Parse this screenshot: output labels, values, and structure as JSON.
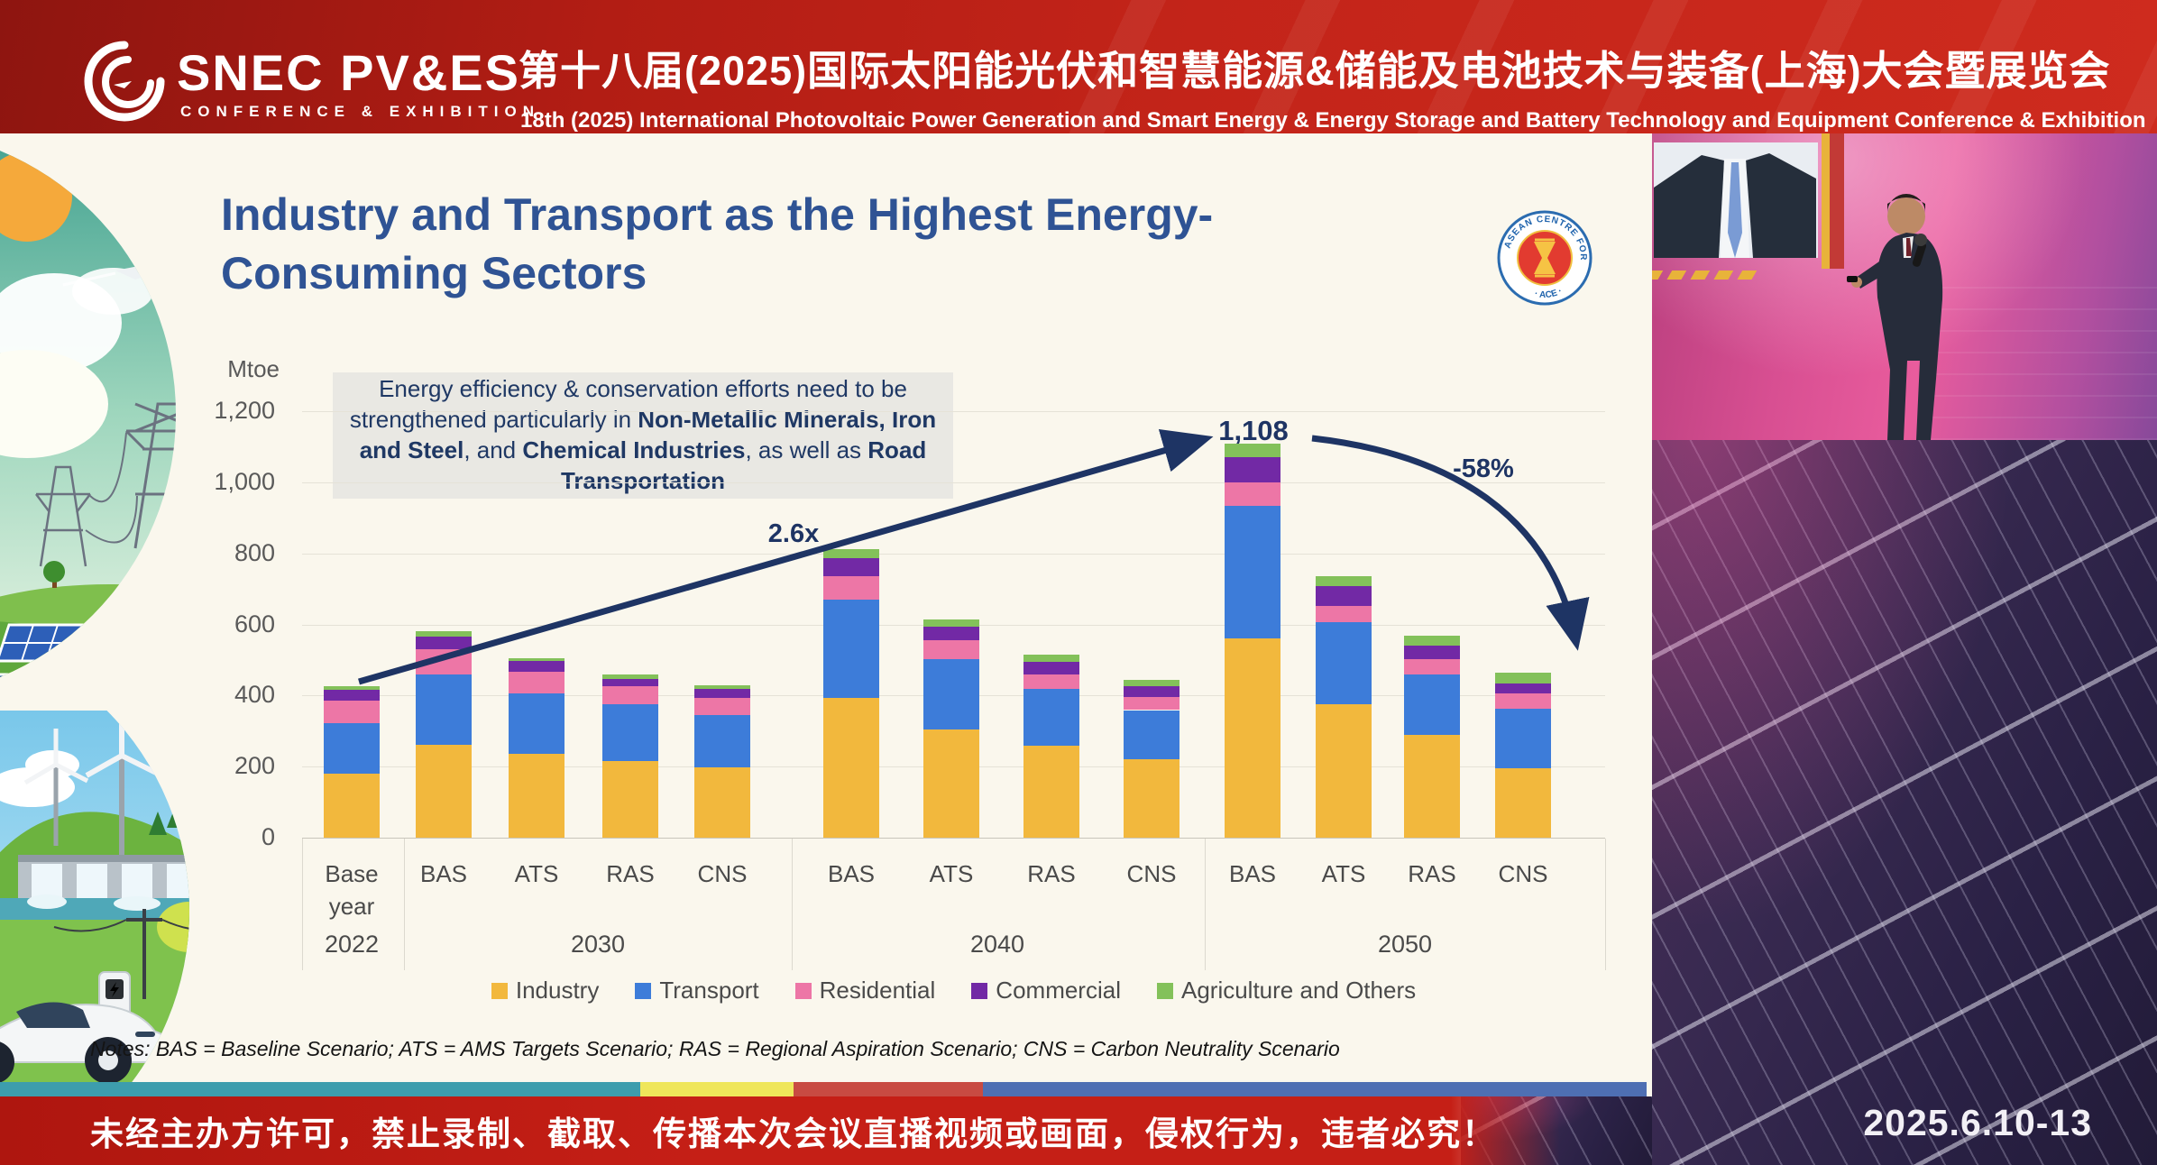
{
  "header": {
    "logo_text": "SNEC PV&ES",
    "logo_sub": "CONFERENCE & EXHIBITION",
    "title_cn": "第十八届(2025)国际太阳能光伏和智慧能源&储能及电池技术与装备(上海)大会暨展览会",
    "title_en": "18th (2025) International Photovoltaic Power Generation and Smart Energy & Energy Storage and Battery Technology and Equipment Conference & Exhibition"
  },
  "slide": {
    "title": "Industry and Transport as the Highest Energy-\nConsuming Sectors",
    "ace_ring_text": "ASEAN CENTRE FOR ENERGY",
    "ace_bottom_text": "· ACE ·",
    "annotation_runs": [
      {
        "t": "Energy efficiency & conservation efforts need to be strengthened particularly in ",
        "b": false
      },
      {
        "t": "Non-Metallic Minerals, Iron and Steel",
        "b": true
      },
      {
        "t": ", and ",
        "b": false
      },
      {
        "t": "Chemical Industries",
        "b": true
      },
      {
        "t": ", as well as ",
        "b": false
      },
      {
        "t": "Road Transportation",
        "b": true
      }
    ],
    "notes": "Notes: BAS = Baseline Scenario; ATS = AMS Targets Scenario; RAS = Regional Aspiration Scenario; CNS = Carbon Neutrality Scenario"
  },
  "chart_data": {
    "type": "bar",
    "stacked": true,
    "ylabel": "Mtoe",
    "ylim": [
      0,
      1200
    ],
    "grid": true,
    "legend_position": "bottom",
    "y_ticks": [
      "1,200",
      "1,000",
      "800",
      "600",
      "400",
      "200",
      "0"
    ],
    "y_tick_values": [
      1200,
      1000,
      800,
      600,
      400,
      200,
      0
    ],
    "categories": [
      "Base\nyear",
      "BAS",
      "ATS",
      "RAS",
      "CNS",
      "BAS",
      "ATS",
      "RAS",
      "CNS",
      "BAS",
      "ATS",
      "RAS",
      "CNS"
    ],
    "group_labels": [
      "2022",
      "2030",
      "2040",
      "2050"
    ],
    "series": [
      {
        "name": "Industry",
        "color": "#F2B83D",
        "values": [
          180,
          262,
          237,
          216,
          197,
          393,
          304,
          258,
          220,
          560,
          376,
          288,
          195
        ]
      },
      {
        "name": "Transport",
        "color": "#3D7CD9",
        "values": [
          143,
          198,
          168,
          160,
          147,
          277,
          198,
          160,
          139,
          374,
          231,
          172,
          168
        ]
      },
      {
        "name": "Residential",
        "color": "#ED76A6",
        "values": [
          62,
          71,
          63,
          50,
          49,
          66,
          53,
          42,
          38,
          65,
          46,
          42,
          42
        ]
      },
      {
        "name": "Commercial",
        "color": "#7229A5",
        "values": [
          31,
          34,
          30,
          21,
          26,
          50,
          39,
          34,
          29,
          72,
          55,
          38,
          30
        ]
      },
      {
        "name": "Agriculture and Others",
        "color": "#83C15A",
        "values": [
          9,
          17,
          8,
          13,
          9,
          27,
          21,
          20,
          19,
          37,
          29,
          29,
          29
        ]
      }
    ],
    "totals": [
      425,
      582,
      506,
      460,
      428,
      813,
      615,
      514,
      445,
      1108,
      737,
      569,
      464
    ],
    "annotations": {
      "growth_label": "2.6x",
      "peak_label": "1,108",
      "decline_label": "-58%"
    }
  },
  "footer": {
    "strip_colors": [
      "#3D9DAD",
      "#EFE65A",
      "#C84B42",
      "#4E6FB3"
    ],
    "notice_cn": "未经主办方许可，禁止录制、截取、传播本次会议直播视频或画面，侵权行为，违者必究！",
    "date": "2025.6.10-13"
  }
}
